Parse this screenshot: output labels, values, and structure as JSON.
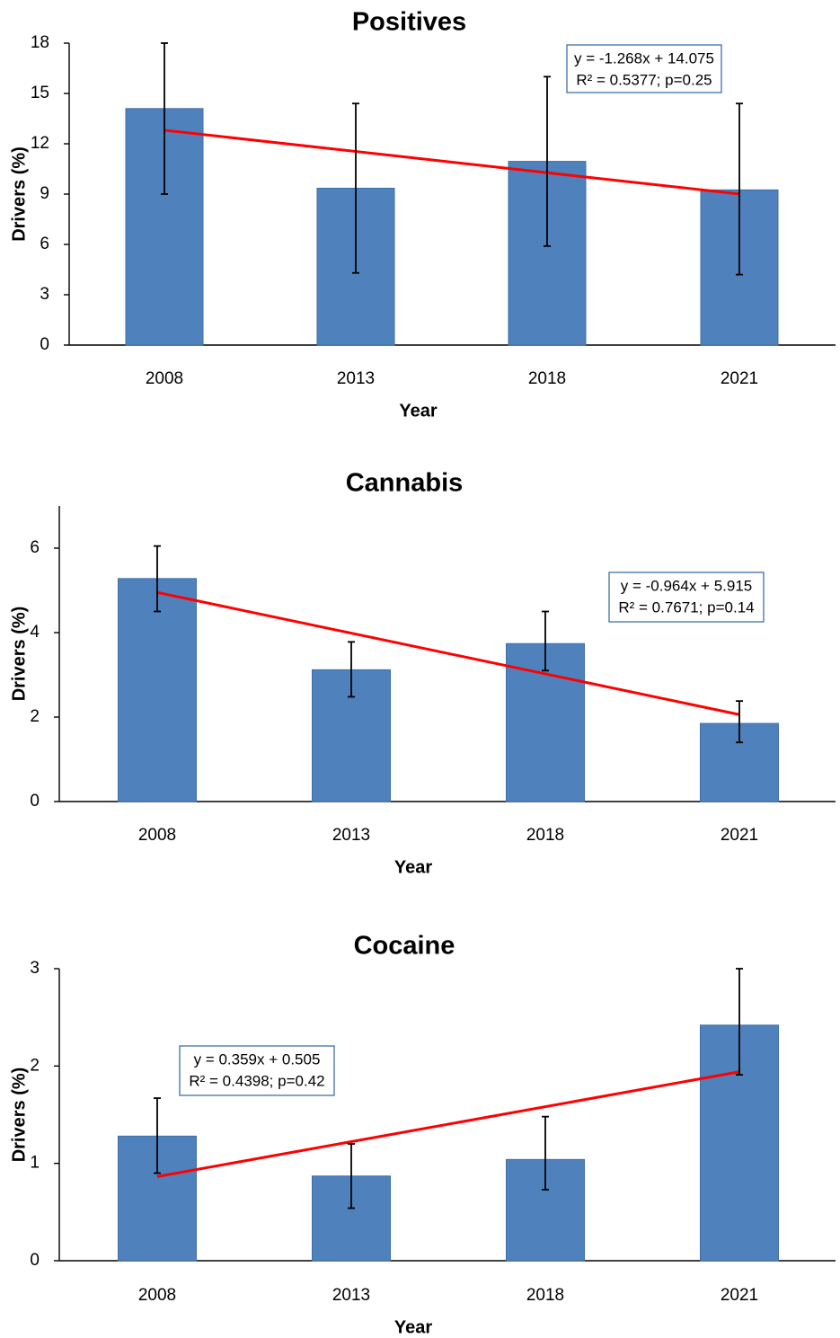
{
  "chart_data": [
    {
      "type": "bar",
      "title": "Positives",
      "xlabel": "Year",
      "ylabel": "Drivers (%)",
      "categories": [
        "2008",
        "2013",
        "2018",
        "2021"
      ],
      "values": [
        14.1,
        9.35,
        10.95,
        9.25
      ],
      "error_low": [
        9.0,
        4.3,
        5.9,
        4.2
      ],
      "error_high": [
        18.0,
        14.4,
        16.0,
        14.4
      ],
      "ylim": [
        0,
        18
      ],
      "yticks": [
        "0",
        "3",
        "6",
        "9",
        "12",
        "15",
        "18"
      ],
      "trendline": {
        "slope": -1.268,
        "intercept": 14.075
      },
      "equation": {
        "line1": "y = -1.268x + 14.075",
        "line2": "R² = 0.5377; p=0.25"
      }
    },
    {
      "type": "bar",
      "title": "Cannabis",
      "xlabel": "Year",
      "ylabel": "Drivers (%)",
      "categories": [
        "2008",
        "2013",
        "2018",
        "2021"
      ],
      "values": [
        5.28,
        3.12,
        3.74,
        1.85
      ],
      "error_low": [
        4.5,
        2.48,
        3.1,
        1.4
      ],
      "error_high": [
        6.05,
        3.78,
        4.5,
        2.38
      ],
      "ylim": [
        0,
        7
      ],
      "yticks": [
        "0",
        "2",
        "4",
        "6"
      ],
      "trendline": {
        "slope": -0.964,
        "intercept": 5.915
      },
      "equation": {
        "line1": "y = -0.964x + 5.915",
        "line2": "R² = 0.7671; p=0.14"
      }
    },
    {
      "type": "bar",
      "title": "Cocaine",
      "xlabel": "Year",
      "ylabel": "Drivers (%)",
      "categories": [
        "2008",
        "2013",
        "2018",
        "2021"
      ],
      "values": [
        1.28,
        0.87,
        1.04,
        2.42
      ],
      "error_low": [
        0.9,
        0.54,
        0.73,
        1.91
      ],
      "error_high": [
        1.67,
        1.2,
        1.48,
        3.0
      ],
      "ylim": [
        0,
        3
      ],
      "yticks": [
        "0",
        "1",
        "2",
        "3"
      ],
      "trendline": {
        "slope": 0.359,
        "intercept": 0.505
      },
      "equation": {
        "line1": "y = 0.359x + 0.505",
        "line2": "R² = 0.4398; p=0.42"
      }
    }
  ]
}
